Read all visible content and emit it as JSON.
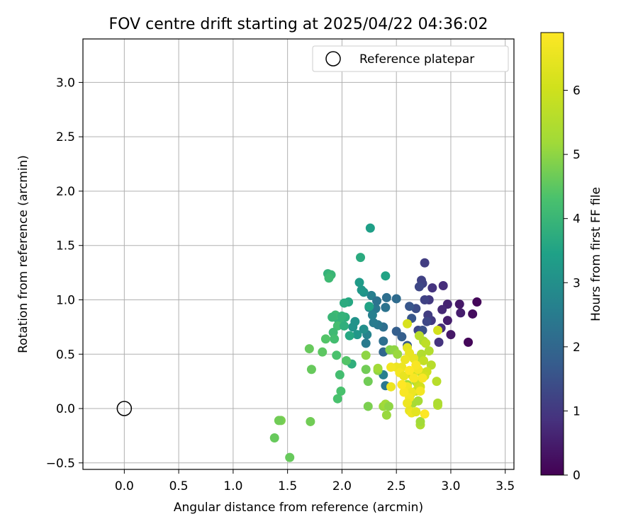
{
  "chart_data": {
    "type": "scatter",
    "title": "FOV centre drift starting at 2025/04/22 04:36:02",
    "xlabel": "Angular distance from reference (arcmin)",
    "ylabel": "Rotation from reference (arcmin)",
    "colorbar_label": "Hours from first FF file",
    "xlim": [
      -0.38,
      3.58
    ],
    "ylim": [
      -0.56,
      3.4
    ],
    "xticks": [
      "0.0",
      "0.5",
      "1.0",
      "1.5",
      "2.0",
      "2.5",
      "3.0",
      "3.5"
    ],
    "yticks": [
      "−0.5",
      "0.0",
      "0.5",
      "1.0",
      "1.5",
      "2.0",
      "2.5",
      "3.0"
    ],
    "colorbar_ticks": [
      "0",
      "1",
      "2",
      "3",
      "4",
      "5",
      "6"
    ],
    "colorbar_range": [
      0,
      6.9
    ],
    "colormap": "viridis",
    "grid": true,
    "legend": {
      "position": "top-right",
      "label": "Reference platepar"
    },
    "reference_point": {
      "x": 0.0,
      "y": 0.0
    },
    "points": [
      [
        3.24,
        0.98,
        0.1
      ],
      [
        3.2,
        0.87,
        0.2
      ],
      [
        3.16,
        0.61,
        0.1
      ],
      [
        3.08,
        0.96,
        0.4
      ],
      [
        3.09,
        0.88,
        0.5
      ],
      [
        3.0,
        0.68,
        0.4
      ],
      [
        2.97,
        0.81,
        0.5
      ],
      [
        2.97,
        0.96,
        0.6
      ],
      [
        2.93,
        1.13,
        0.8
      ],
      [
        2.92,
        0.91,
        0.7
      ],
      [
        2.91,
        0.74,
        0.8
      ],
      [
        2.89,
        0.61,
        0.9
      ],
      [
        2.83,
        1.11,
        0.9
      ],
      [
        2.82,
        0.81,
        1.0
      ],
      [
        2.8,
        1.0,
        1.0
      ],
      [
        2.79,
        0.86,
        1.1
      ],
      [
        2.76,
        1.34,
        1.1
      ],
      [
        2.73,
        1.18,
        1.2
      ],
      [
        2.74,
        1.15,
        1.2
      ],
      [
        2.71,
        1.12,
        1.3
      ],
      [
        2.76,
        1.0,
        1.2
      ],
      [
        2.78,
        0.8,
        1.3
      ],
      [
        2.7,
        0.72,
        1.3
      ],
      [
        2.68,
        0.92,
        1.4
      ],
      [
        2.62,
        0.94,
        1.6
      ],
      [
        2.64,
        0.83,
        1.6
      ],
      [
        2.74,
        0.72,
        1.5
      ],
      [
        2.6,
        0.58,
        1.7
      ],
      [
        2.55,
        0.66,
        1.8
      ],
      [
        2.5,
        0.71,
        1.8
      ],
      [
        2.5,
        1.01,
        2.1
      ],
      [
        2.41,
        1.02,
        2.2
      ],
      [
        2.4,
        0.93,
        2.3
      ],
      [
        2.38,
        0.75,
        2.2
      ],
      [
        2.33,
        0.77,
        2.4
      ],
      [
        2.29,
        0.79,
        2.5
      ],
      [
        2.31,
        0.92,
        2.4
      ],
      [
        2.27,
        1.04,
        2.6
      ],
      [
        2.25,
        0.93,
        2.6
      ],
      [
        2.23,
        0.68,
        2.7
      ],
      [
        2.22,
        0.6,
        2.5
      ],
      [
        2.28,
        0.86,
        2.6
      ],
      [
        2.32,
        0.99,
        2.3
      ],
      [
        2.38,
        0.52,
        2.0
      ],
      [
        2.38,
        0.62,
        2.2
      ],
      [
        2.4,
        0.21,
        2.4
      ],
      [
        2.38,
        0.31,
        2.6
      ],
      [
        2.2,
        1.07,
        3.1
      ],
      [
        2.18,
        1.09,
        3.2
      ],
      [
        2.16,
        1.16,
        3.3
      ],
      [
        2.12,
        0.8,
        3.1
      ],
      [
        2.1,
        0.75,
        3.1
      ],
      [
        2.14,
        0.68,
        3.2
      ],
      [
        2.2,
        0.73,
        3.0
      ],
      [
        2.26,
        1.66,
        3.4
      ],
      [
        2.4,
        1.22,
        3.5
      ],
      [
        2.17,
        1.39,
        3.7
      ],
      [
        2.25,
        0.94,
        3.5
      ],
      [
        2.06,
        0.98,
        3.6
      ],
      [
        2.02,
        0.97,
        3.7
      ],
      [
        2.03,
        0.84,
        3.8
      ],
      [
        2.07,
        0.67,
        3.6
      ],
      [
        2.09,
        0.41,
        3.8
      ],
      [
        1.97,
        0.81,
        3.9
      ],
      [
        1.94,
        0.86,
        4.1
      ],
      [
        1.91,
        0.84,
        4.0
      ],
      [
        1.96,
        0.76,
        4.2
      ],
      [
        1.92,
        0.7,
        4.1
      ],
      [
        1.93,
        0.64,
        4.2
      ],
      [
        1.95,
        0.49,
        4.3
      ],
      [
        1.98,
        0.31,
        4.2
      ],
      [
        1.99,
        0.16,
        4.3
      ],
      [
        1.96,
        0.09,
        4.3
      ],
      [
        2.04,
        0.44,
        4.4
      ],
      [
        1.87,
        1.24,
        3.9
      ],
      [
        1.9,
        1.23,
        4.0
      ],
      [
        1.88,
        1.2,
        4.1
      ],
      [
        2.0,
        0.85,
        3.9
      ],
      [
        2.02,
        0.76,
        3.8
      ],
      [
        1.85,
        0.64,
        4.4
      ],
      [
        1.82,
        0.52,
        4.5
      ],
      [
        1.72,
        0.36,
        4.6
      ],
      [
        1.7,
        0.55,
        4.6
      ],
      [
        1.52,
        -0.45,
        4.6
      ],
      [
        1.44,
        -0.11,
        4.8
      ],
      [
        1.42,
        -0.11,
        4.7
      ],
      [
        1.38,
        -0.27,
        4.6
      ],
      [
        1.71,
        -0.12,
        4.7
      ],
      [
        2.22,
        0.36,
        4.7
      ],
      [
        2.24,
        0.25,
        4.7
      ],
      [
        2.24,
        0.02,
        4.8
      ],
      [
        2.22,
        0.49,
        5.0
      ],
      [
        2.33,
        0.35,
        5.0
      ],
      [
        2.33,
        0.37,
        5.2
      ],
      [
        2.38,
        0.02,
        5.1
      ],
      [
        2.4,
        0.04,
        5.2
      ],
      [
        2.41,
        -0.06,
        5.1
      ],
      [
        2.43,
        0.02,
        5.0
      ],
      [
        2.44,
        0.54,
        4.9
      ],
      [
        2.48,
        0.54,
        5.0
      ],
      [
        2.51,
        0.5,
        5.1
      ],
      [
        2.6,
        0.22,
        5.2
      ],
      [
        2.63,
        0.13,
        5.3
      ],
      [
        2.65,
        0.05,
        5.3
      ],
      [
        2.7,
        0.07,
        5.3
      ],
      [
        2.72,
        -0.15,
        5.4
      ],
      [
        2.72,
        -0.12,
        5.2
      ],
      [
        2.68,
        0.25,
        5.3
      ],
      [
        2.7,
        0.44,
        5.4
      ],
      [
        2.73,
        0.5,
        5.5
      ],
      [
        2.75,
        0.62,
        5.4
      ],
      [
        2.8,
        0.53,
        5.5
      ],
      [
        2.82,
        0.4,
        5.6
      ],
      [
        2.87,
        0.25,
        5.6
      ],
      [
        2.88,
        0.03,
        5.5
      ],
      [
        2.88,
        0.05,
        5.4
      ],
      [
        2.71,
        0.67,
        5.6
      ],
      [
        2.77,
        0.6,
        5.7
      ],
      [
        2.75,
        0.44,
        5.8
      ],
      [
        2.73,
        0.33,
        5.8
      ],
      [
        2.7,
        0.22,
        5.9
      ],
      [
        2.68,
        0.16,
        5.9
      ],
      [
        2.65,
        0.3,
        6.0
      ],
      [
        2.6,
        0.78,
        6.2
      ],
      [
        2.88,
        0.72,
        6.1
      ],
      [
        2.78,
        0.34,
        6.0
      ],
      [
        2.76,
        0.3,
        6.1
      ],
      [
        2.72,
        0.2,
        6.1
      ],
      [
        2.6,
        0.56,
        6.4
      ],
      [
        2.62,
        0.51,
        6.5
      ],
      [
        2.66,
        0.46,
        6.5
      ],
      [
        2.58,
        0.45,
        6.6
      ],
      [
        2.55,
        0.38,
        6.6
      ],
      [
        2.5,
        0.38,
        6.6
      ],
      [
        2.45,
        0.38,
        6.7
      ],
      [
        2.45,
        0.2,
        6.6
      ],
      [
        2.53,
        0.33,
        6.7
      ],
      [
        2.57,
        0.3,
        6.5
      ],
      [
        2.6,
        0.2,
        6.7
      ],
      [
        2.64,
        0.15,
        6.6
      ],
      [
        2.62,
        0.1,
        6.7
      ],
      [
        2.6,
        0.05,
        6.6
      ],
      [
        2.62,
        -0.02,
        6.5
      ],
      [
        2.64,
        -0.04,
        6.6
      ],
      [
        2.68,
        -0.03,
        6.4
      ],
      [
        2.7,
        0.36,
        6.7
      ],
      [
        2.74,
        0.28,
        6.8
      ],
      [
        2.72,
        0.16,
        6.7
      ],
      [
        2.76,
        -0.05,
        6.9
      ],
      [
        2.66,
        0.28,
        6.8
      ],
      [
        2.68,
        0.4,
        6.8
      ],
      [
        2.57,
        0.15,
        6.8
      ],
      [
        2.55,
        0.22,
        6.9
      ],
      [
        2.62,
        0.35,
        6.9
      ]
    ]
  }
}
